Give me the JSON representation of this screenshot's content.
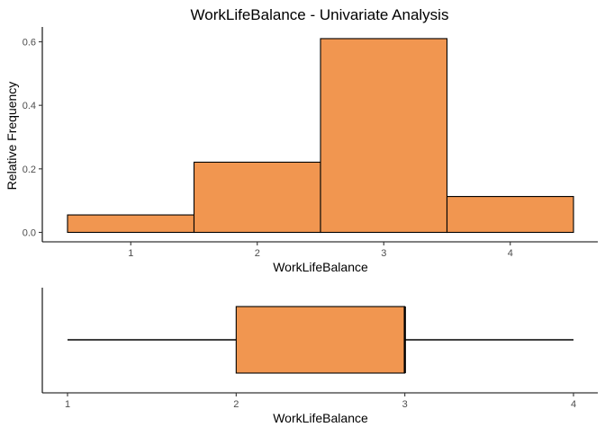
{
  "chart_data": [
    {
      "type": "bar",
      "title": "WorkLifeBalance - Univariate Analysis",
      "xlabel": "WorkLifeBalance",
      "ylabel": "Relative Frequency",
      "categories": [
        "1",
        "2",
        "3",
        "4"
      ],
      "values": [
        0.055,
        0.221,
        0.61,
        0.113
      ],
      "xlim": [
        0.5,
        4.5
      ],
      "ylim": [
        0,
        0.6
      ],
      "yticks": [
        "0.0",
        "0.2",
        "0.4",
        "0.6"
      ],
      "grid": false,
      "fill_color": "#F19650"
    },
    {
      "type": "boxplot",
      "xlabel": "WorkLifeBalance",
      "xticks": [
        "1",
        "2",
        "3",
        "4"
      ],
      "min": 1,
      "q1": 2,
      "median": 3,
      "q3": 3,
      "max": 4,
      "grid": false,
      "fill_color": "#F19650"
    }
  ]
}
